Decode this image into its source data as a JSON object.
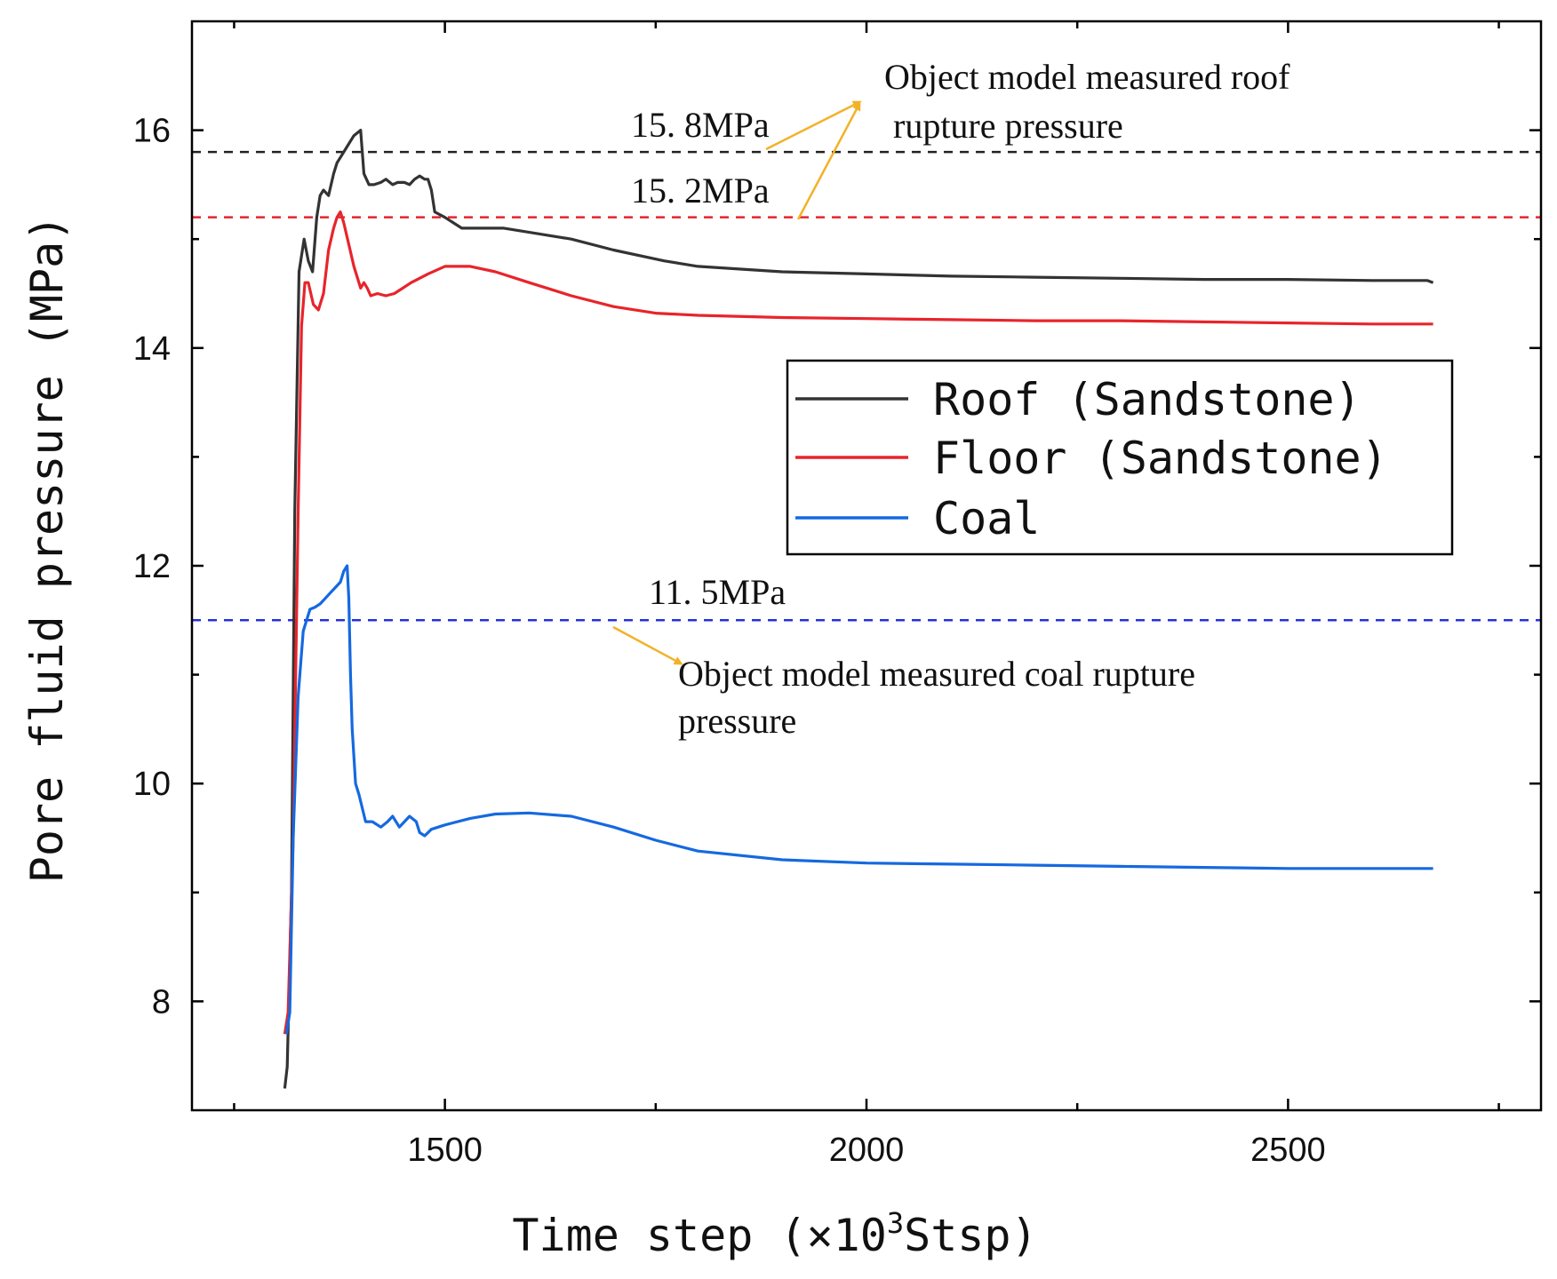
{
  "chart_data": {
    "type": "line",
    "xlabel_prefix": "Time step (×10",
    "xlabel_sup": "3",
    "xlabel_suffix": "Stsp)",
    "ylabel": "Pore fluid pressure (MPa)",
    "xlim": [
      1200,
      2800
    ],
    "ylim": [
      7,
      17
    ],
    "xticks": [
      1500,
      2000,
      2500
    ],
    "yticks": [
      8,
      10,
      12,
      14,
      16
    ],
    "xticks_minor": [
      1250,
      1750,
      2250,
      2750
    ],
    "yticks_minor": [
      9,
      11,
      13,
      15
    ],
    "legend": {
      "position": "center-right"
    },
    "series": [
      {
        "name": "Roof (Sandstone)",
        "color": "#333333",
        "x": [
          1310,
          1313,
          1318,
          1322,
          1327,
          1333,
          1338,
          1343,
          1348,
          1352,
          1356,
          1362,
          1368,
          1372,
          1376,
          1384,
          1392,
          1400,
          1404,
          1410,
          1416,
          1424,
          1430,
          1438,
          1444,
          1452,
          1458,
          1464,
          1470,
          1476,
          1480,
          1484,
          1488,
          1500,
          1520,
          1540,
          1570,
          1610,
          1650,
          1700,
          1760,
          1800,
          1900,
          2000,
          2100,
          2200,
          2300,
          2400,
          2500,
          2600,
          2665,
          2672
        ],
        "y": [
          7.2,
          7.4,
          9.0,
          12.5,
          14.7,
          15.0,
          14.8,
          14.7,
          15.2,
          15.4,
          15.45,
          15.4,
          15.6,
          15.7,
          15.75,
          15.85,
          15.95,
          16.0,
          15.6,
          15.5,
          15.5,
          15.52,
          15.55,
          15.5,
          15.52,
          15.52,
          15.5,
          15.55,
          15.58,
          15.55,
          15.55,
          15.45,
          15.25,
          15.2,
          15.1,
          15.1,
          15.1,
          15.05,
          15.0,
          14.9,
          14.8,
          14.75,
          14.7,
          14.68,
          14.66,
          14.65,
          14.64,
          14.63,
          14.63,
          14.62,
          14.62,
          14.6
        ]
      },
      {
        "name": "Floor (Sandstone)",
        "color": "#e8242b",
        "x": [
          1310,
          1314,
          1320,
          1326,
          1330,
          1334,
          1338,
          1344,
          1350,
          1356,
          1362,
          1368,
          1372,
          1376,
          1380,
          1386,
          1392,
          1400,
          1404,
          1408,
          1412,
          1420,
          1430,
          1440,
          1450,
          1460,
          1480,
          1500,
          1530,
          1560,
          1600,
          1650,
          1700,
          1750,
          1800,
          1900,
          2000,
          2100,
          2200,
          2300,
          2400,
          2500,
          2600,
          2672
        ],
        "y": [
          7.7,
          7.9,
          9.5,
          12.5,
          14.2,
          14.6,
          14.6,
          14.4,
          14.35,
          14.5,
          14.9,
          15.1,
          15.2,
          15.25,
          15.15,
          14.95,
          14.75,
          14.55,
          14.6,
          14.55,
          14.48,
          14.5,
          14.48,
          14.5,
          14.55,
          14.6,
          14.68,
          14.75,
          14.75,
          14.7,
          14.6,
          14.48,
          14.38,
          14.32,
          14.3,
          14.28,
          14.27,
          14.26,
          14.25,
          14.25,
          14.24,
          14.23,
          14.22,
          14.22
        ]
      },
      {
        "name": "Coal",
        "color": "#1569e0",
        "x": [
          1312,
          1316,
          1320,
          1326,
          1332,
          1336,
          1340,
          1346,
          1352,
          1358,
          1364,
          1370,
          1376,
          1380,
          1384,
          1386,
          1388,
          1390,
          1394,
          1398,
          1406,
          1414,
          1424,
          1432,
          1438,
          1446,
          1452,
          1458,
          1466,
          1470,
          1476,
          1484,
          1500,
          1530,
          1560,
          1600,
          1650,
          1700,
          1750,
          1800,
          1900,
          2000,
          2100,
          2200,
          2300,
          2400,
          2500,
          2600,
          2672
        ],
        "y": [
          7.7,
          7.9,
          9.5,
          10.8,
          11.4,
          11.5,
          11.6,
          11.62,
          11.65,
          11.7,
          11.75,
          11.8,
          11.85,
          11.95,
          12.0,
          11.7,
          11.0,
          10.5,
          10.0,
          9.9,
          9.65,
          9.65,
          9.6,
          9.65,
          9.7,
          9.6,
          9.65,
          9.7,
          9.65,
          9.55,
          9.52,
          9.58,
          9.62,
          9.68,
          9.72,
          9.73,
          9.7,
          9.6,
          9.48,
          9.38,
          9.3,
          9.27,
          9.26,
          9.25,
          9.24,
          9.23,
          9.22,
          9.22,
          9.22
        ]
      }
    ],
    "reference_lines": [
      {
        "y": 15.8,
        "color": "#222222",
        "label": "15. 8MPa"
      },
      {
        "y": 15.2,
        "color": "#e8242b",
        "label": "15. 2MPa"
      },
      {
        "y": 11.5,
        "color": "#2233dd",
        "label": "11. 5MPa"
      }
    ],
    "annotations": {
      "roof_line1": "Object model measured roof",
      "roof_line2": "rupture pressure",
      "coal_line1": "Object model measured coal  rupture",
      "coal_line2": "pressure"
    },
    "arrow_color": "#f2b227"
  }
}
